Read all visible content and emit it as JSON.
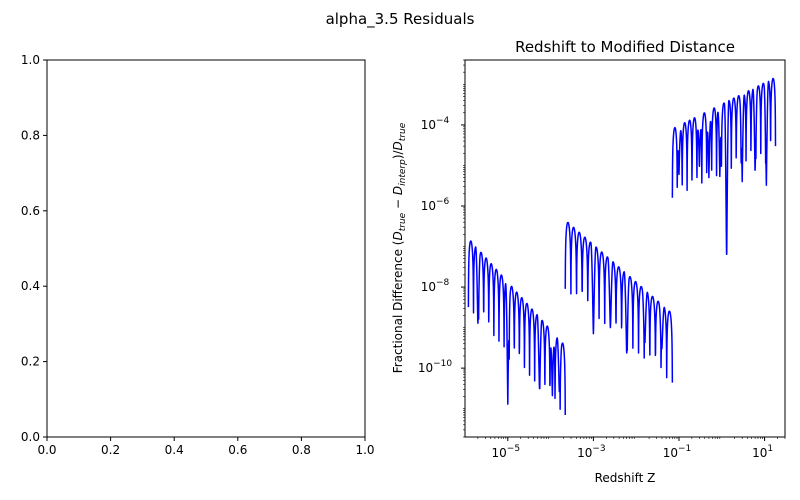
{
  "figure": {
    "suptitle": "alpha_3.5 Residuals"
  },
  "chart_data": [
    {
      "type": "line",
      "title": "",
      "xlabel": "",
      "ylabel": "",
      "xlim": [
        0,
        1
      ],
      "ylim": [
        0,
        1
      ],
      "x_ticks": [
        0.0,
        0.2,
        0.4,
        0.6,
        0.8,
        1.0
      ],
      "x_tick_labels": [
        "0.0",
        "0.2",
        "0.4",
        "0.6",
        "0.8",
        "1.0"
      ],
      "y_ticks": [
        0.0,
        0.2,
        0.4,
        0.6,
        0.8,
        1.0
      ],
      "y_tick_labels": [
        "0.0",
        "0.2",
        "0.4",
        "0.6",
        "0.8",
        "1.0"
      ],
      "series": [],
      "grid": false
    },
    {
      "type": "line",
      "title": "Redshift to Modified Distance",
      "xlabel": "Redshift Z",
      "ylabel": "Fractional Difference (D_true − D_interp)/D_true",
      "ylabel_parts": {
        "prefix": "Fractional Difference (",
        "d1": "D",
        "s1": "true",
        "mid": " − ",
        "d2": "D",
        "s2": "interp",
        "close": ")/",
        "d3": "D",
        "s3": "true"
      },
      "x_scale": "log",
      "y_scale": "log",
      "xlim": [
        1e-06,
        30
      ],
      "ylim": [
        2e-12,
        0.004
      ],
      "x_ticks": [
        1e-05,
        0.001,
        0.1,
        10
      ],
      "x_tick_base": [
        "10",
        "10",
        "10",
        "10"
      ],
      "x_tick_exp": [
        "−5",
        "−3",
        "−1",
        "1"
      ],
      "y_ticks": [
        1e-10,
        1e-08,
        1e-06,
        0.0001
      ],
      "y_tick_base": [
        "10",
        "10",
        "10",
        "10"
      ],
      "y_tick_exp": [
        "−10",
        "−8",
        "−6",
        "−4"
      ],
      "line_color": "#0000ff",
      "grid": false,
      "series": [
        {
          "segment": 1,
          "z_start": 1.2e-06,
          "z_end": 0.00022,
          "envelope_start": 1.6e-07,
          "envelope_end": 3.5e-10,
          "oscillations": 19,
          "deep_minima": [
            [
              2e-06,
              1.1e-09
            ],
            [
              1e-05,
              1.1e-11
            ],
            [
              5.5e-05,
              3e-11
            ],
            [
              0.00011,
              2e-11
            ],
            [
              0.00016,
              2.5e-11
            ]
          ]
        },
        {
          "segment": 2,
          "z_start": 0.00022,
          "z_end": 0.07,
          "envelope_start": 4.5e-07,
          "envelope_end": 2.2e-09,
          "oscillations": 19,
          "deep_minima": [
            [
              0.001,
              7e-10
            ],
            [
              0.0025,
              1e-09
            ],
            [
              0.006,
              2e-10
            ],
            [
              0.016,
              4e-10
            ],
            [
              0.04,
              3e-10
            ]
          ]
        },
        {
          "segment": 3,
          "z_start": 0.07,
          "z_end": 18,
          "envelope_start": 8e-05,
          "envelope_end": 0.0015,
          "oscillations": 21,
          "deep_minima": [
            [
              0.1,
              6e-06
            ],
            [
              0.3,
              8e-06
            ],
            [
              0.5,
              5e-06
            ],
            [
              0.9,
              5e-06
            ],
            [
              1.3,
              4e-08
            ],
            [
              3,
              4e-06
            ],
            [
              6,
              6e-06
            ],
            [
              11,
              3e-06
            ]
          ]
        }
      ]
    }
  ]
}
